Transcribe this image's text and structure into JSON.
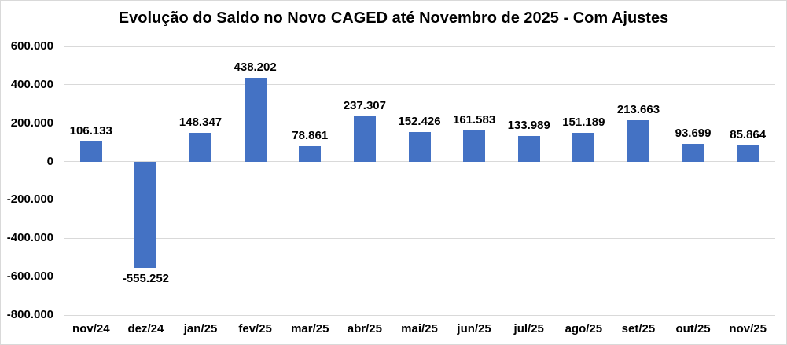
{
  "chart_data": {
    "type": "bar",
    "title": "Evolução do Saldo no Novo CAGED até Novembro de 2025 - Com Ajustes",
    "xlabel": "",
    "ylabel": "",
    "grid": true,
    "legend": false,
    "categories": [
      "nov/24",
      "dez/24",
      "jan/25",
      "fev/25",
      "mar/25",
      "abr/25",
      "mai/25",
      "jun/25",
      "jul/25",
      "ago/25",
      "set/25",
      "out/25",
      "nov/25"
    ],
    "values": [
      106133,
      -555252,
      148347,
      438202,
      78861,
      237307,
      152426,
      161583,
      133989,
      151189,
      213663,
      93699,
      85864
    ],
    "data_labels": [
      "106.133",
      "-555.252",
      "148.347",
      "438.202",
      "78.861",
      "237.307",
      "152.426",
      "161.583",
      "133.989",
      "151.189",
      "213.663",
      "93.699",
      "85.864"
    ],
    "y_axis": {
      "min": -800000,
      "max": 600000,
      "step": 200000,
      "ticks": [
        {
          "value": 600000,
          "label": "600.000"
        },
        {
          "value": 400000,
          "label": "400.000"
        },
        {
          "value": 200000,
          "label": "200.000"
        },
        {
          "value": 0,
          "label": "0"
        },
        {
          "value": -200000,
          "label": "-200.000"
        },
        {
          "value": -400000,
          "label": "-400.000"
        },
        {
          "value": -600000,
          "label": "-600.000"
        },
        {
          "value": -800000,
          "label": "-800.000"
        }
      ]
    },
    "colors": {
      "bar": "#4472C4",
      "gridline": "#D9D9D9",
      "text": "#000000",
      "background": "#FFFFFF",
      "border": "#D9D9D9"
    }
  }
}
